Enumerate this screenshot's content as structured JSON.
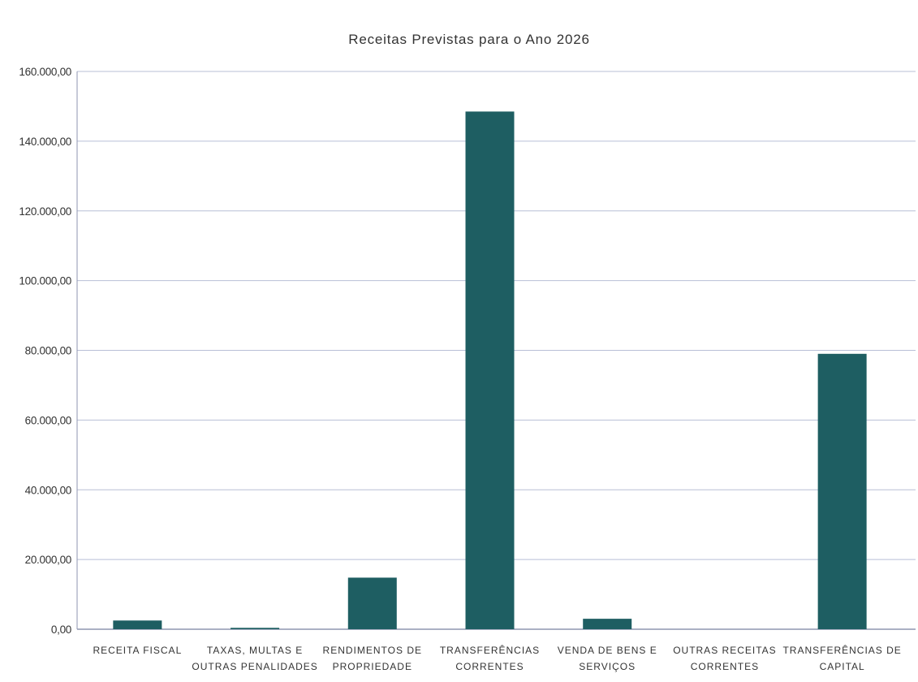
{
  "chart_data": {
    "type": "bar",
    "title": "Receitas Previstas para o Ano 2026",
    "xlabel": "",
    "ylabel": "",
    "ylim": [
      0,
      160000
    ],
    "yticks": [
      0,
      20000,
      40000,
      60000,
      80000,
      100000,
      120000,
      140000,
      160000
    ],
    "ytick_labels": [
      "0,00",
      "20.000,00",
      "40.000,00",
      "60.000,00",
      "80.000,00",
      "100.000,00",
      "120.000,00",
      "140.000,00",
      "160.000,00"
    ],
    "categories": [
      [
        "RECEITA FISCAL"
      ],
      [
        "TAXAS, MULTAS E",
        "OUTRAS PENALIDADES"
      ],
      [
        "RENDIMENTOS DE",
        "PROPRIEDADE"
      ],
      [
        "TRANSFERÊNCIAS",
        "CORRENTES"
      ],
      [
        "VENDA DE BENS E",
        "SERVIÇOS"
      ],
      [
        "OUTRAS RECEITAS",
        "CORRENTES"
      ],
      [
        "TRANSFERÊNCIAS DE",
        "CAPITAL"
      ]
    ],
    "values": [
      2500,
      400,
      14800,
      148500,
      3000,
      0,
      79000
    ],
    "grid": true,
    "legend": "none",
    "colors": {
      "bar": "#1e5e62",
      "grid": "#b8bfd6",
      "axis": "#8f96b0",
      "text": "#333333"
    }
  }
}
